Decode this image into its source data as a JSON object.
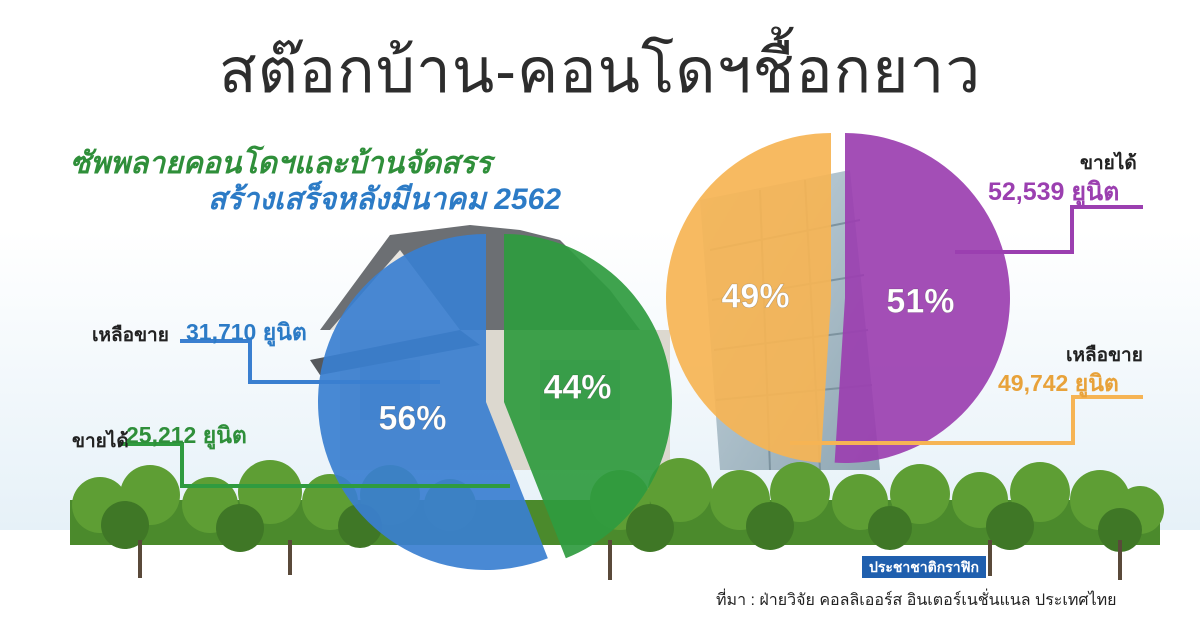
{
  "title": "สต๊อกบ้าน-คอนโดฯชื้อกยาว",
  "subtitle_line1": "ซัพพลายคอนโดฯและบ้านจัดสรร",
  "subtitle_line2": "สร้างเสร็จหลังมีนาคม 2562",
  "colors": {
    "blue": "#3a7fd0",
    "green": "#2f9b3f",
    "orange": "#f6b454",
    "purple": "#9b3fb0"
  },
  "chart_data": [
    {
      "type": "pie",
      "slices": [
        {
          "label": "เหลือขาย",
          "units_text": "31,710 ยูนิต",
          "value": 31710,
          "percent_text": "56%",
          "percent": 56,
          "color": "#3a7fd0"
        },
        {
          "label": "ขายได้",
          "units_text": "25,212 ยูนิต",
          "value": 25212,
          "percent_text": "44%",
          "percent": 44,
          "color": "#2f9b3f"
        }
      ]
    },
    {
      "type": "pie",
      "slices": [
        {
          "label": "ขายได้",
          "units_text": "52,539 ยูนิต",
          "value": 52539,
          "percent_text": "51%",
          "percent": 51,
          "color": "#9b3fb0"
        },
        {
          "label": "เหลือขาย",
          "units_text": "49,742 ยูนิต",
          "value": 49742,
          "percent_text": "49%",
          "percent": 49,
          "color": "#f6b454"
        }
      ]
    }
  ],
  "badge": "ประชาชาติกราฟิก",
  "source": "ที่มา : ฝ่ายวิจัย คอลลิเออร์ส อินเตอร์เนชั่นแนล ประเทศไทย"
}
